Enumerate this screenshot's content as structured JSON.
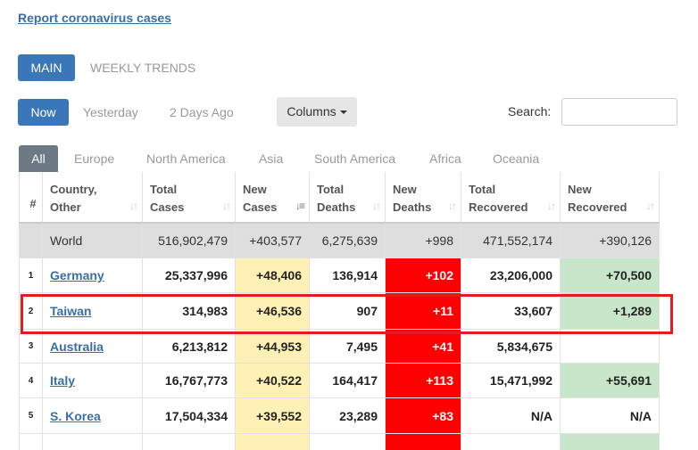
{
  "report_link": "Report coronavirus cases",
  "view_tabs": [
    {
      "label": "MAIN",
      "active": true
    },
    {
      "label": "WEEKLY TRENDS",
      "active": false
    }
  ],
  "time_tabs": [
    {
      "label": "Now",
      "active": true
    },
    {
      "label": "Yesterday",
      "active": false
    },
    {
      "label": "2 Days Ago",
      "active": false
    }
  ],
  "columns_button": "Columns",
  "search": {
    "label": "Search:",
    "value": "",
    "placeholder": ""
  },
  "region_tabs": [
    {
      "label": "All",
      "active": true
    },
    {
      "label": "Europe",
      "active": false
    },
    {
      "label": "North America",
      "active": false
    },
    {
      "label": "Asia",
      "active": false
    },
    {
      "label": "South America",
      "active": false
    },
    {
      "label": "Africa",
      "active": false
    },
    {
      "label": "Oceania",
      "active": false
    }
  ],
  "table": {
    "headers": [
      {
        "line1": "#",
        "line2": ""
      },
      {
        "line1": "Country,",
        "line2": "Other"
      },
      {
        "line1": "Total",
        "line2": "Cases"
      },
      {
        "line1": "New",
        "line2": "Cases"
      },
      {
        "line1": "Total",
        "line2": "Deaths"
      },
      {
        "line1": "New",
        "line2": "Deaths"
      },
      {
        "line1": "Total",
        "line2": "Recovered"
      },
      {
        "line1": "New",
        "line2": "Recovered"
      }
    ],
    "world": {
      "num": "",
      "country": "World",
      "total_cases": "516,902,479",
      "new_cases": "+403,577",
      "total_deaths": "6,275,639",
      "new_deaths": "+998",
      "total_recovered": "471,552,174",
      "new_recovered": "+390,126"
    },
    "rows": [
      {
        "num": "1",
        "country": "Germany",
        "total_cases": "25,337,996",
        "new_cases": "+48,406",
        "total_deaths": "136,914",
        "new_deaths": "+102",
        "total_recovered": "23,206,000",
        "new_recovered": "+70,500"
      },
      {
        "num": "2",
        "country": "Taiwan",
        "total_cases": "314,983",
        "new_cases": "+46,536",
        "total_deaths": "907",
        "new_deaths": "+11",
        "total_recovered": "33,607",
        "new_recovered": "+1,289"
      },
      {
        "num": "3",
        "country": "Australia",
        "total_cases": "6,213,812",
        "new_cases": "+44,953",
        "total_deaths": "7,495",
        "new_deaths": "+41",
        "total_recovered": "5,834,675",
        "new_recovered": ""
      },
      {
        "num": "4",
        "country": "Italy",
        "total_cases": "16,767,773",
        "new_cases": "+40,522",
        "total_deaths": "164,417",
        "new_deaths": "+113",
        "total_recovered": "15,471,992",
        "new_recovered": "+55,691"
      },
      {
        "num": "5",
        "country": "S. Korea",
        "total_cases": "17,504,334",
        "new_cases": "+39,552",
        "total_deaths": "23,289",
        "new_deaths": "+83",
        "total_recovered": "N/A",
        "new_recovered": "N/A"
      }
    ]
  },
  "colors": {
    "accent": "#3a77b8",
    "new_cases_bg": "#fff1b5",
    "new_deaths_bg": "#ff0000",
    "new_recovered_bg": "#c8e6c9",
    "highlight": "#e31b23"
  }
}
